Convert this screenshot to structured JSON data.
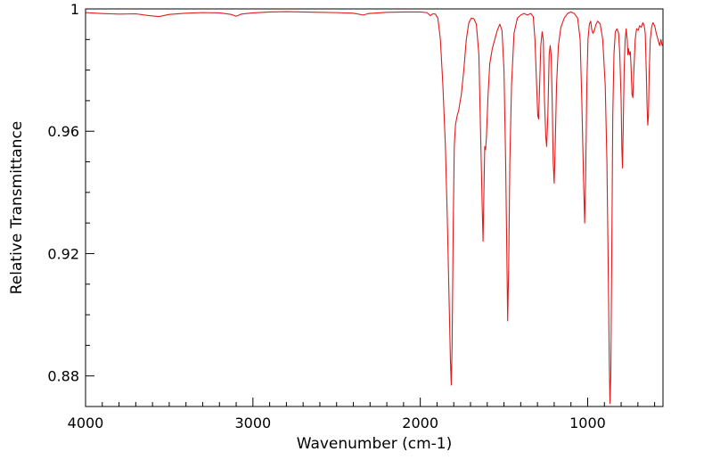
{
  "chart_data": {
    "type": "line",
    "xlabel": "Wavenumber (cm-1)",
    "ylabel": "Relative Transmittance",
    "xlim": [
      4000,
      550
    ],
    "x_reversed": true,
    "ylim": [
      0.87,
      1.0
    ],
    "x_ticks": [
      4000,
      3000,
      2000,
      1000
    ],
    "x_tick_labels": [
      "4000",
      "3000",
      "2000",
      "1000"
    ],
    "y_ticks": [
      0.88,
      0.92,
      0.96,
      1.0
    ],
    "y_tick_labels": [
      "0.88",
      "0.92",
      "0.96",
      "1"
    ],
    "grid": false,
    "series": [
      {
        "color": "#e31a1c",
        "points": [
          [
            4000,
            0.9988
          ],
          [
            3900,
            0.9985
          ],
          [
            3800,
            0.9983
          ],
          [
            3700,
            0.9984
          ],
          [
            3620,
            0.9978
          ],
          [
            3560,
            0.9975
          ],
          [
            3500,
            0.9982
          ],
          [
            3400,
            0.9986
          ],
          [
            3300,
            0.9988
          ],
          [
            3200,
            0.9987
          ],
          [
            3130,
            0.9982
          ],
          [
            3100,
            0.9976
          ],
          [
            3070,
            0.9983
          ],
          [
            3000,
            0.9987
          ],
          [
            2900,
            0.999
          ],
          [
            2800,
            0.9991
          ],
          [
            2700,
            0.999
          ],
          [
            2600,
            0.9989
          ],
          [
            2500,
            0.9988
          ],
          [
            2400,
            0.9986
          ],
          [
            2340,
            0.998
          ],
          [
            2310,
            0.9985
          ],
          [
            2200,
            0.9989
          ],
          [
            2100,
            0.999
          ],
          [
            2000,
            0.999
          ],
          [
            1960,
            0.9988
          ],
          [
            1940,
            0.9978
          ],
          [
            1925,
            0.9984
          ],
          [
            1910,
            0.9983
          ],
          [
            1895,
            0.997
          ],
          [
            1880,
            0.99
          ],
          [
            1865,
            0.975
          ],
          [
            1850,
            0.955
          ],
          [
            1838,
            0.93
          ],
          [
            1828,
            0.905
          ],
          [
            1820,
            0.885
          ],
          [
            1815,
            0.877
          ],
          [
            1810,
            0.89
          ],
          [
            1803,
            0.93
          ],
          [
            1797,
            0.955
          ],
          [
            1790,
            0.962
          ],
          [
            1780,
            0.965
          ],
          [
            1770,
            0.967
          ],
          [
            1755,
            0.972
          ],
          [
            1740,
            0.98
          ],
          [
            1725,
            0.99
          ],
          [
            1710,
            0.9955
          ],
          [
            1695,
            0.997
          ],
          [
            1680,
            0.9968
          ],
          [
            1665,
            0.995
          ],
          [
            1650,
            0.985
          ],
          [
            1640,
            0.96
          ],
          [
            1630,
            0.935
          ],
          [
            1625,
            0.924
          ],
          [
            1620,
            0.94
          ],
          [
            1615,
            0.955
          ],
          [
            1610,
            0.954
          ],
          [
            1605,
            0.958
          ],
          [
            1595,
            0.972
          ],
          [
            1585,
            0.982
          ],
          [
            1570,
            0.987
          ],
          [
            1555,
            0.99
          ],
          [
            1540,
            0.993
          ],
          [
            1525,
            0.995
          ],
          [
            1512,
            0.993
          ],
          [
            1500,
            0.98
          ],
          [
            1490,
            0.95
          ],
          [
            1483,
            0.92
          ],
          [
            1478,
            0.898
          ],
          [
            1472,
            0.915
          ],
          [
            1465,
            0.95
          ],
          [
            1455,
            0.975
          ],
          [
            1440,
            0.992
          ],
          [
            1420,
            0.997
          ],
          [
            1400,
            0.998
          ],
          [
            1380,
            0.9985
          ],
          [
            1360,
            0.998
          ],
          [
            1340,
            0.9985
          ],
          [
            1325,
            0.9975
          ],
          [
            1315,
            0.99
          ],
          [
            1305,
            0.975
          ],
          [
            1298,
            0.965
          ],
          [
            1293,
            0.964
          ],
          [
            1287,
            0.975
          ],
          [
            1280,
            0.988
          ],
          [
            1272,
            0.9925
          ],
          [
            1265,
            0.99
          ],
          [
            1258,
            0.97
          ],
          [
            1250,
            0.958
          ],
          [
            1245,
            0.955
          ],
          [
            1238,
            0.965
          ],
          [
            1230,
            0.985
          ],
          [
            1224,
            0.988
          ],
          [
            1218,
            0.985
          ],
          [
            1212,
            0.97
          ],
          [
            1206,
            0.95
          ],
          [
            1200,
            0.943
          ],
          [
            1194,
            0.955
          ],
          [
            1186,
            0.975
          ],
          [
            1175,
            0.988
          ],
          [
            1160,
            0.994
          ],
          [
            1140,
            0.997
          ],
          [
            1120,
            0.9985
          ],
          [
            1100,
            0.999
          ],
          [
            1080,
            0.9985
          ],
          [
            1060,
            0.997
          ],
          [
            1045,
            0.99
          ],
          [
            1035,
            0.97
          ],
          [
            1025,
            0.945
          ],
          [
            1018,
            0.93
          ],
          [
            1012,
            0.945
          ],
          [
            1005,
            0.975
          ],
          [
            998,
            0.99
          ],
          [
            990,
            0.995
          ],
          [
            982,
            0.996
          ],
          [
            975,
            0.993
          ],
          [
            968,
            0.992
          ],
          [
            960,
            0.993
          ],
          [
            950,
            0.995
          ],
          [
            940,
            0.996
          ],
          [
            925,
            0.995
          ],
          [
            910,
            0.99
          ],
          [
            895,
            0.975
          ],
          [
            885,
            0.95
          ],
          [
            876,
            0.91
          ],
          [
            871,
            0.885
          ],
          [
            867,
            0.871
          ],
          [
            862,
            0.88
          ],
          [
            856,
            0.92
          ],
          [
            850,
            0.965
          ],
          [
            843,
            0.985
          ],
          [
            835,
            0.9925
          ],
          [
            825,
            0.9935
          ],
          [
            815,
            0.992
          ],
          [
            808,
            0.985
          ],
          [
            800,
            0.97
          ],
          [
            796,
            0.955
          ],
          [
            792,
            0.948
          ],
          [
            788,
            0.96
          ],
          [
            782,
            0.98
          ],
          [
            776,
            0.99
          ],
          [
            770,
            0.9935
          ],
          [
            764,
            0.99
          ],
          [
            760,
            0.985
          ],
          [
            756,
            0.987
          ],
          [
            750,
            0.985
          ],
          [
            745,
            0.986
          ],
          [
            740,
            0.98
          ],
          [
            735,
            0.972
          ],
          [
            730,
            0.971
          ],
          [
            724,
            0.98
          ],
          [
            716,
            0.99
          ],
          [
            708,
            0.9935
          ],
          [
            698,
            0.993
          ],
          [
            690,
            0.9945
          ],
          [
            680,
            0.994
          ],
          [
            670,
            0.9955
          ],
          [
            662,
            0.9945
          ],
          [
            656,
            0.992
          ],
          [
            650,
            0.98
          ],
          [
            645,
            0.968
          ],
          [
            641,
            0.962
          ],
          [
            637,
            0.965
          ],
          [
            632,
            0.98
          ],
          [
            626,
            0.99
          ],
          [
            618,
            0.994
          ],
          [
            610,
            0.9955
          ],
          [
            600,
            0.9945
          ],
          [
            590,
            0.992
          ],
          [
            580,
            0.99
          ],
          [
            570,
            0.988
          ],
          [
            562,
            0.99
          ],
          [
            555,
            0.988
          ]
        ]
      }
    ]
  }
}
